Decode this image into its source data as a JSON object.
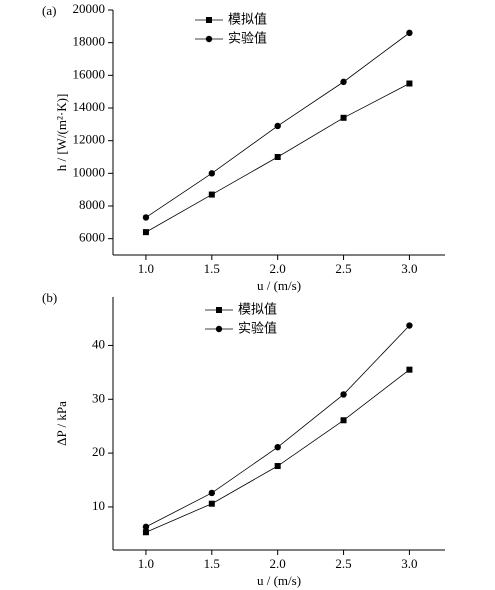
{
  "chart_data": [
    {
      "type": "line",
      "panel_label": "(a)",
      "x_label": "u / (m/s)",
      "y_label": "h / [W/(m²·K)]",
      "x": [
        1.0,
        1.5,
        2.0,
        2.5,
        3.0
      ],
      "xlim": [
        0.75,
        3.27
      ],
      "xticks": [
        {
          "value": 1,
          "label": "1.0"
        },
        1.5,
        {
          "value": 2,
          "label": "2.0"
        },
        2.5,
        {
          "value": 3,
          "label": "3.0"
        }
      ],
      "ylim": [
        5000,
        20000
      ],
      "yticks": [
        6000,
        8000,
        10000,
        12000,
        14000,
        16000,
        18000,
        20000
      ],
      "series": [
        {
          "name": "模拟值",
          "color": "#000000",
          "marker": "square",
          "values": [
            6400,
            8700,
            11000,
            13400,
            15500
          ]
        },
        {
          "name": "实验值",
          "color": "#000000",
          "marker": "circle",
          "values": [
            7300,
            10000,
            12900,
            15600,
            18600
          ]
        }
      ]
    },
    {
      "type": "line",
      "panel_label": "(b)",
      "x_label": "u / (m/s)",
      "y_label": "ΔP / kPa",
      "x": [
        1.0,
        1.5,
        2.0,
        2.5,
        3.0
      ],
      "xlim": [
        0.75,
        3.27
      ],
      "xticks": [
        {
          "value": 1,
          "label": "1.0"
        },
        1.5,
        {
          "value": 2,
          "label": "2.0"
        },
        2.5,
        {
          "value": 3,
          "label": "3.0"
        }
      ],
      "ylim": [
        2,
        49
      ],
      "yticks": [
        10,
        20,
        30,
        40
      ],
      "series": [
        {
          "name": "模拟值",
          "color": "#000000",
          "marker": "square",
          "values": [
            5.3,
            10.6,
            17.6,
            26.1,
            35.5
          ]
        },
        {
          "name": "实验值",
          "color": "#000000",
          "marker": "circle",
          "values": [
            6.3,
            12.6,
            21.1,
            30.9,
            43.7
          ]
        }
      ]
    }
  ]
}
